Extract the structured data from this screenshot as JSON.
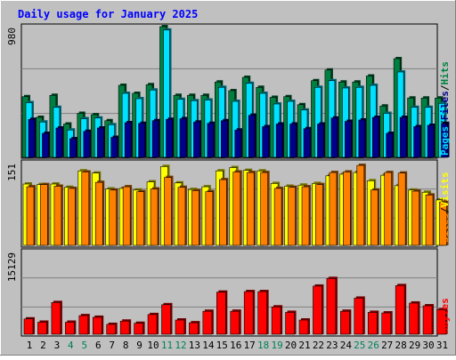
{
  "chart_data": [
    {
      "type": "bar",
      "title": "Daily usage for January 2025",
      "ymax_label": "980",
      "ylim": [
        0,
        980
      ],
      "categories": [
        "1",
        "2",
        "3",
        "4",
        "5",
        "6",
        "7",
        "8",
        "9",
        "10",
        "11",
        "12",
        "13",
        "14",
        "15",
        "16",
        "17",
        "18",
        "19",
        "20",
        "21",
        "22",
        "23",
        "24",
        "25",
        "26",
        "27",
        "28",
        "29",
        "30",
        "31"
      ],
      "weekend_days": [
        "4",
        "5",
        "11",
        "12",
        "18",
        "19",
        "25",
        "26"
      ],
      "side_labels": [
        "Pages",
        "Files",
        "Hits"
      ],
      "series": [
        {
          "name": "Hits",
          "color": "#008040",
          "values": [
            455,
            300,
            465,
            250,
            330,
            320,
            275,
            540,
            480,
            545,
            980,
            465,
            465,
            465,
            565,
            500,
            600,
            525,
            450,
            455,
            395,
            575,
            655,
            565,
            565,
            610,
            385,
            740,
            445,
            445,
            445
          ]
        },
        {
          "name": "Files",
          "color": "#00E0FF",
          "values": [
            410,
            265,
            375,
            205,
            290,
            295,
            245,
            480,
            440,
            505,
            955,
            435,
            425,
            430,
            525,
            420,
            555,
            480,
            400,
            420,
            355,
            525,
            575,
            520,
            525,
            540,
            330,
            640,
            375,
            375,
            405
          ]
        },
        {
          "name": "Pages",
          "color": "#00008B",
          "values": [
            285,
            180,
            220,
            140,
            195,
            220,
            150,
            260,
            255,
            275,
            285,
            290,
            265,
            255,
            275,
            205,
            315,
            230,
            250,
            250,
            215,
            250,
            295,
            270,
            280,
            300,
            180,
            300,
            230,
            240,
            255
          ]
        }
      ]
    },
    {
      "type": "bar",
      "ymax_label": "151",
      "ylim": [
        0,
        151
      ],
      "side_labels": [
        "Sites",
        "Visits"
      ],
      "series": [
        {
          "name": "Visits",
          "color": "#FFFF00",
          "values": [
            112,
            111,
            112,
            106,
            136,
            132,
            103,
            104,
            101,
            116,
            144,
            114,
            102,
            107,
            136,
            142,
            137,
            136,
            113,
            108,
            110,
            113,
            127,
            130,
            133,
            118,
            128,
            109,
            101,
            97,
            83
          ]
        },
        {
          "name": "Sites",
          "color": "#FF8000",
          "values": [
            107,
            111,
            108,
            104,
            134,
            115,
            101,
            107,
            98,
            103,
            124,
            106,
            100,
            98,
            120,
            134,
            133,
            133,
            104,
            106,
            107,
            111,
            133,
            134,
            146,
            101,
            133,
            132,
            99,
            92,
            79
          ]
        }
      ]
    },
    {
      "type": "bar",
      "ymax_label": "15129",
      "ylim": [
        0,
        15129
      ],
      "side_labels": [
        "KBytes"
      ],
      "series": [
        {
          "name": "KBytes",
          "color": "#FF0000",
          "values": [
            2800,
            2200,
            5800,
            2200,
            3400,
            3100,
            1800,
            2400,
            2000,
            3600,
            5400,
            2600,
            2100,
            4200,
            7700,
            4200,
            7800,
            7800,
            5000,
            4000,
            2600,
            8800,
            10200,
            4200,
            6600,
            4000,
            3900,
            8900,
            5700,
            5200,
            4500
          ]
        }
      ]
    }
  ]
}
